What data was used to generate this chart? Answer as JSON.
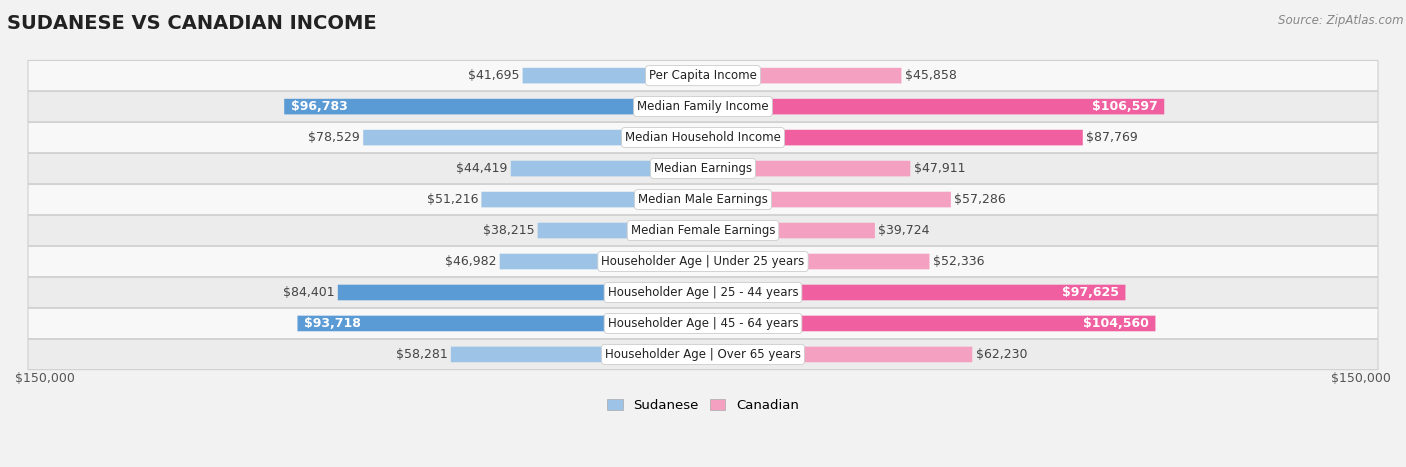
{
  "title": "SUDANESE VS CANADIAN INCOME",
  "source": "Source: ZipAtlas.com",
  "categories": [
    "Per Capita Income",
    "Median Family Income",
    "Median Household Income",
    "Median Earnings",
    "Median Male Earnings",
    "Median Female Earnings",
    "Householder Age | Under 25 years",
    "Householder Age | 25 - 44 years",
    "Householder Age | 45 - 64 years",
    "Householder Age | Over 65 years"
  ],
  "sudanese_values": [
    41695,
    96783,
    78529,
    44419,
    51216,
    38215,
    46982,
    84401,
    93718,
    58281
  ],
  "canadian_values": [
    45858,
    106597,
    87769,
    47911,
    57286,
    39724,
    52336,
    97625,
    104560,
    62230
  ],
  "sudanese_labels": [
    "$41,695",
    "$96,783",
    "$78,529",
    "$44,419",
    "$51,216",
    "$38,215",
    "$46,982",
    "$84,401",
    "$93,718",
    "$58,281"
  ],
  "canadian_labels": [
    "$45,858",
    "$106,597",
    "$87,769",
    "$47,911",
    "$57,286",
    "$39,724",
    "$52,336",
    "$97,625",
    "$104,560",
    "$62,230"
  ],
  "sudanese_inside_label": [
    false,
    true,
    false,
    false,
    false,
    false,
    false,
    false,
    true,
    false
  ],
  "canadian_inside_label": [
    false,
    true,
    false,
    false,
    false,
    false,
    false,
    true,
    true,
    false
  ],
  "sudanese_color_dark": "#5b9bd5",
  "sudanese_color_light": "#9dc3e6",
  "canadian_color_dark": "#f060a0",
  "canadian_color_light": "#f4a0c0",
  "max_value": 150000,
  "bg_color": "#f0f0f0",
  "row_colors": [
    "#f8f8f8",
    "#ececec"
  ],
  "title_fontsize": 14,
  "label_fontsize": 9,
  "cat_fontsize": 8.5,
  "axis_label": "$150,000",
  "bar_height": 0.5,
  "inside_label_threshold": 55000
}
